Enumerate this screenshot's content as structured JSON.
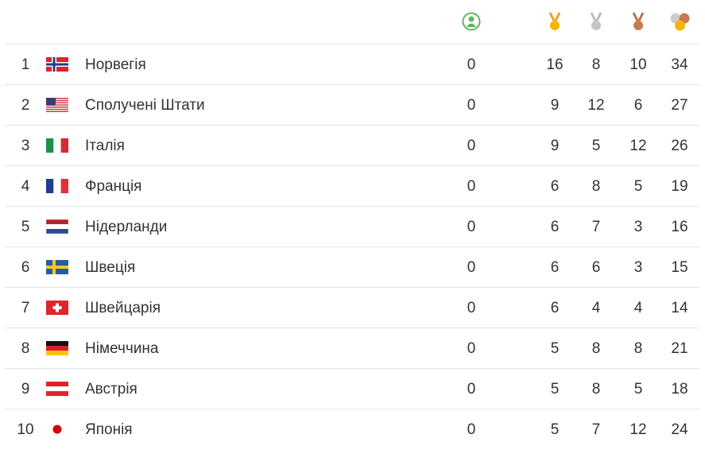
{
  "table": {
    "rows": [
      [
        1,
        "Норвегія",
        0,
        16,
        8,
        10,
        34
      ],
      [
        2,
        "Сполучені Штати",
        0,
        9,
        12,
        6,
        27
      ],
      [
        3,
        "Італія",
        0,
        9,
        5,
        12,
        26
      ],
      [
        4,
        "Франція",
        0,
        6,
        8,
        5,
        19
      ],
      [
        5,
        "Нідерланди",
        0,
        6,
        7,
        3,
        16
      ],
      [
        6,
        "Швеція",
        0,
        6,
        6,
        3,
        15
      ],
      [
        7,
        "Швейцарія",
        0,
        6,
        4,
        4,
        14
      ],
      [
        8,
        "Німеччина",
        0,
        5,
        8,
        8,
        21
      ],
      [
        9,
        "Австрія",
        0,
        5,
        8,
        5,
        18
      ],
      [
        10,
        "Японія",
        0,
        5,
        7,
        12,
        24
      ]
    ]
  }
}
